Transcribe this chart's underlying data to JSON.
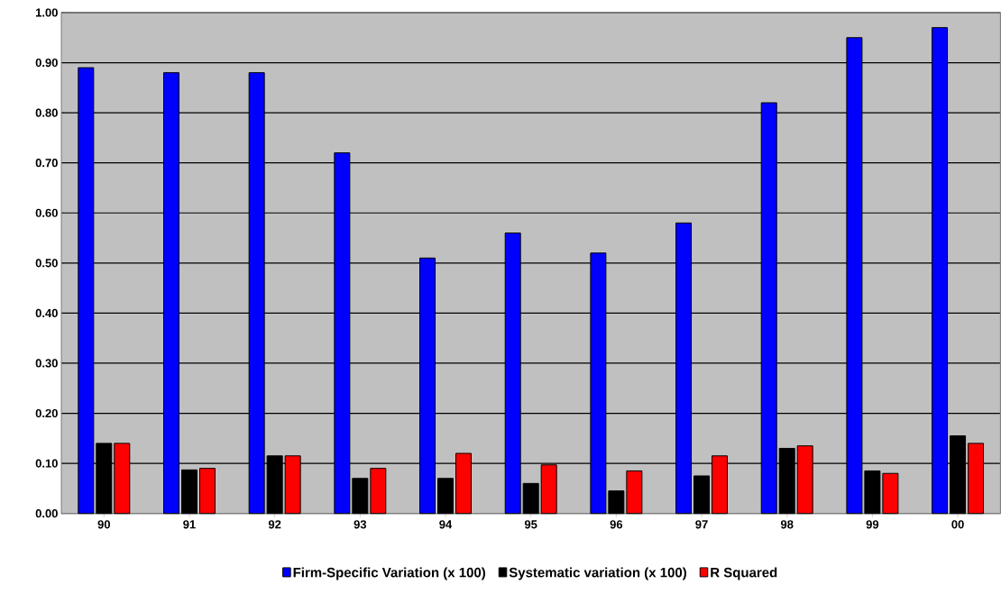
{
  "chart_data": {
    "type": "bar",
    "categories": [
      "90",
      "91",
      "92",
      "93",
      "94",
      "95",
      "96",
      "97",
      "98",
      "99",
      "00"
    ],
    "series": [
      {
        "name": "Firm-Specific Variation (x 100)",
        "color": "#0000ff",
        "values": [
          0.89,
          0.88,
          0.88,
          0.72,
          0.51,
          0.56,
          0.52,
          0.58,
          0.82,
          0.95,
          0.97
        ]
      },
      {
        "name": "Systematic variation (x 100)",
        "color": "#000000",
        "values": [
          0.14,
          0.087,
          0.115,
          0.07,
          0.07,
          0.06,
          0.045,
          0.075,
          0.13,
          0.085,
          0.155
        ]
      },
      {
        "name": "R Squared",
        "color": "#ff0000",
        "values": [
          0.14,
          0.09,
          0.115,
          0.09,
          0.12,
          0.097,
          0.085,
          0.115,
          0.135,
          0.08,
          0.14
        ]
      }
    ],
    "ylim": [
      0,
      1
    ],
    "yticks": [
      {
        "value": 0,
        "label": "0.00"
      },
      {
        "value": 0.1,
        "label": "0.10"
      },
      {
        "value": 0.2,
        "label": "0.20"
      },
      {
        "value": 0.3,
        "label": "0.30"
      },
      {
        "value": 0.4,
        "label": "0.40"
      },
      {
        "value": 0.5,
        "label": "0.50"
      },
      {
        "value": 0.6,
        "label": "0.60"
      },
      {
        "value": 0.7,
        "label": "0.70"
      },
      {
        "value": 0.8,
        "label": "0.80"
      },
      {
        "value": 0.9,
        "label": "0.90"
      },
      {
        "value": 1,
        "label": "1.00"
      }
    ],
    "grid": "y",
    "legend": "bottom"
  }
}
